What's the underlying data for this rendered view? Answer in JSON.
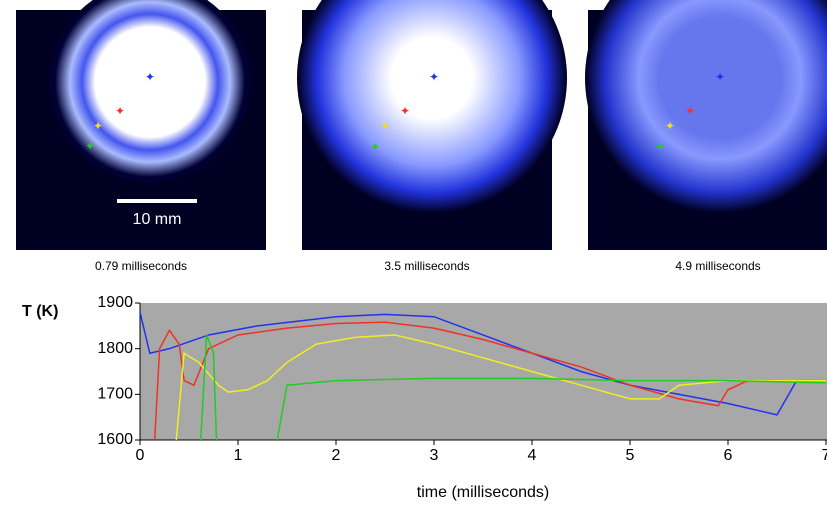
{
  "images": [
    {
      "caption": "0.79 milliseconds",
      "scale_bar": "10 mm"
    },
    {
      "caption": "3.5 milliseconds"
    },
    {
      "caption": "4.9 milliseconds"
    }
  ],
  "chart_data": {
    "type": "line",
    "ylabel": "T (K)",
    "xlabel": "time (milliseconds)",
    "xlim": [
      0,
      7
    ],
    "ylim": [
      1600,
      1900
    ],
    "xticks": [
      0,
      1,
      2,
      3,
      4,
      5,
      6,
      7
    ],
    "yticks": [
      1600,
      1700,
      1800,
      1900
    ],
    "background": "#a8a8a8",
    "series": [
      {
        "color": "#2233ee",
        "x": [
          0,
          0.1,
          0.3,
          0.7,
          1.2,
          2,
          2.5,
          3,
          3.5,
          4,
          4.5,
          5,
          5.5,
          6,
          6.5,
          6.7,
          7
        ],
        "values": [
          1880,
          1790,
          1800,
          1830,
          1850,
          1870,
          1875,
          1870,
          1830,
          1790,
          1750,
          1720,
          1700,
          1680,
          1655,
          1730,
          1730
        ]
      },
      {
        "color": "#ee3322",
        "x": [
          0.15,
          0.2,
          0.3,
          0.4,
          0.45,
          0.55,
          0.7,
          1,
          1.5,
          2,
          2.5,
          3,
          3.5,
          4,
          4.5,
          5,
          5.5,
          5.9,
          6,
          6.2,
          7
        ],
        "values": [
          1600,
          1800,
          1840,
          1810,
          1730,
          1720,
          1800,
          1830,
          1845,
          1855,
          1858,
          1845,
          1820,
          1790,
          1760,
          1720,
          1690,
          1675,
          1710,
          1730,
          1730
        ]
      },
      {
        "color": "#eeee22",
        "x": [
          0.37,
          0.45,
          0.6,
          0.8,
          0.9,
          1.1,
          1.3,
          1.5,
          1.8,
          2.2,
          2.6,
          3,
          3.5,
          4,
          4.5,
          5,
          5.3,
          5.5,
          6,
          7
        ],
        "values": [
          1600,
          1790,
          1770,
          1720,
          1705,
          1710,
          1730,
          1770,
          1810,
          1825,
          1830,
          1810,
          1780,
          1750,
          1720,
          1690,
          1690,
          1720,
          1730,
          1730
        ]
      },
      {
        "color": "#22cc22",
        "x": [
          0.62,
          0.68,
          0.75,
          0.78,
          1.0,
          1.4,
          1.5,
          2,
          3,
          4,
          5,
          6,
          7
        ],
        "values": [
          1600,
          1830,
          1790,
          1600,
          null,
          1600,
          1720,
          1730,
          1735,
          1735,
          1730,
          1730,
          1725
        ]
      }
    ]
  }
}
